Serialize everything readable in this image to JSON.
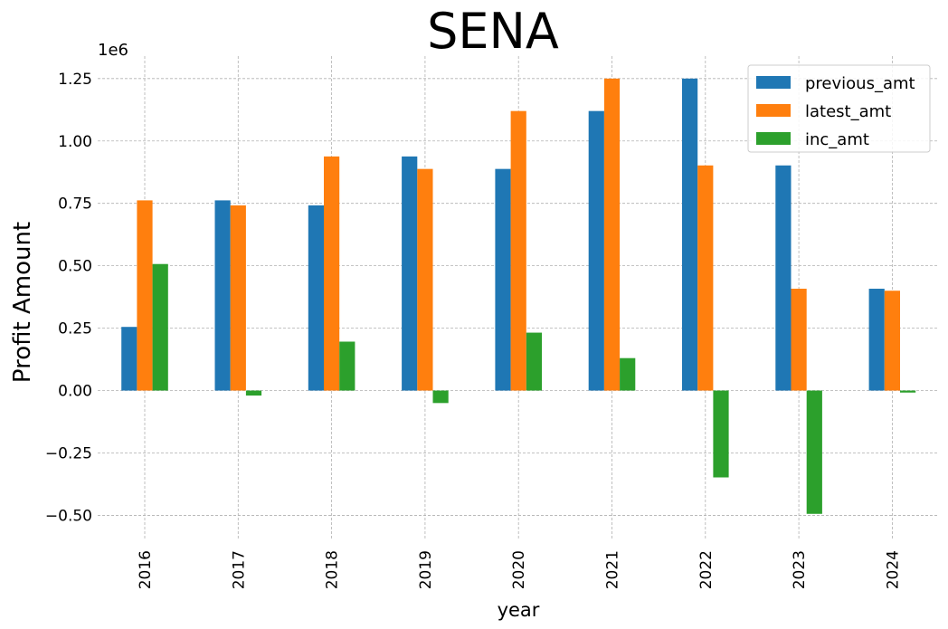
{
  "chart_data": {
    "type": "bar",
    "title": "SENA",
    "xlabel": "year",
    "ylabel": "Profit Amount",
    "y_offset_label": "1e6",
    "categories": [
      "2016",
      "2017",
      "2018",
      "2019",
      "2020",
      "2021",
      "2022",
      "2023",
      "2024"
    ],
    "series": [
      {
        "name": "previous_amt",
        "color": "#1f77b4",
        "values": [
          255000,
          762000,
          742000,
          938000,
          888000,
          1120000,
          1250000,
          902000,
          408000
        ]
      },
      {
        "name": "latest_amt",
        "color": "#ff7f0e",
        "values": [
          762000,
          742000,
          938000,
          888000,
          1120000,
          1250000,
          902000,
          408000,
          400000
        ]
      },
      {
        "name": "inc_amt",
        "color": "#2ca02c",
        "values": [
          507000,
          -20000,
          196000,
          -50000,
          232000,
          130000,
          -348000,
          -494000,
          -8000
        ]
      }
    ],
    "y_ticks": [
      -0.5,
      -0.25,
      0.0,
      0.25,
      0.5,
      0.75,
      1.0,
      1.25
    ],
    "y_tick_labels": [
      "−0.50",
      "−0.25",
      "0.00",
      "0.25",
      "0.50",
      "0.75",
      "1.00",
      "1.25"
    ],
    "ylim": [
      -0.6,
      1.34
    ],
    "y_scale": 1000000,
    "grid": true,
    "legend_position": "top-right"
  }
}
